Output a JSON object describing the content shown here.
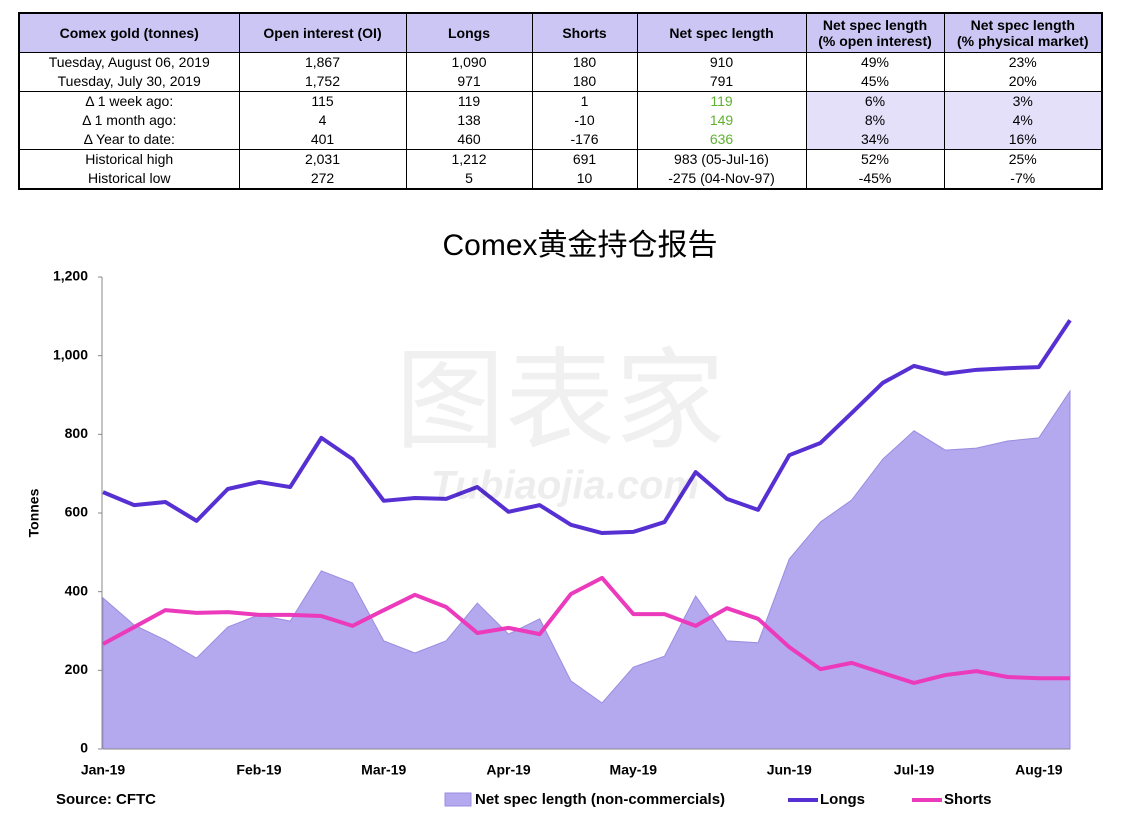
{
  "table": {
    "header": [
      "Comex gold (tonnes)",
      "Open interest (OI)",
      "Longs",
      "Shorts",
      "Net spec length",
      "Net spec length\n(% open interest)",
      "Net spec length\n(% physical market)"
    ],
    "rows": [
      [
        "Tuesday, August 06, 2019",
        "1,867",
        "1,090",
        "180",
        "910",
        "49%",
        "23%"
      ],
      [
        "Tuesday, July 30, 2019",
        "1,752",
        "971",
        "180",
        "791",
        "45%",
        "20%"
      ],
      [
        "Δ 1 week ago:",
        "115",
        "119",
        "1",
        "119",
        "6%",
        "3%"
      ],
      [
        "Δ 1 month ago:",
        "4",
        "138",
        "-10",
        "149",
        "8%",
        "4%"
      ],
      [
        "Δ Year to date:",
        "401",
        "460",
        "-176",
        "636",
        "34%",
        "16%"
      ],
      [
        "Historical high",
        "2,031",
        "1,212",
        "691",
        "983  (05-Jul-16)",
        "52%",
        "25%"
      ],
      [
        "Historical low",
        "272",
        "5",
        "10",
        "-275  (04-Nov-97)",
        "-45%",
        "-7%"
      ]
    ]
  },
  "watermark": [
    "图表家",
    "Tubiaojia.com"
  ],
  "chart_data": {
    "type": "line",
    "title": "Comex黄金持仓报告",
    "y_label": "Tonnes",
    "source": "Source: CFTC",
    "categories": [
      "Jan-19",
      null,
      null,
      null,
      null,
      "Feb-19",
      null,
      null,
      null,
      "Mar-19",
      null,
      null,
      null,
      "Apr-19",
      null,
      null,
      null,
      "May-19",
      null,
      null,
      null,
      null,
      "Jun-19",
      null,
      null,
      null,
      "Jul-19",
      null,
      null,
      null,
      "Aug-19",
      null
    ],
    "ylim": [
      0,
      1200
    ],
    "yticks": [
      0,
      200,
      400,
      600,
      800,
      {
        "value": 1000,
        "label": "1,000"
      },
      {
        "value": 1200,
        "label": "1,200"
      }
    ],
    "series": [
      {
        "name": "Net spec length (non-commercials)",
        "style": "area",
        "color": "#b4a8ee",
        "values": [
          384,
          315,
          277,
          231,
          310,
          341,
          325,
          453,
          422,
          275,
          244,
          275,
          371,
          292,
          331,
          173,
          117,
          208,
          236,
          389,
          275,
          270,
          483,
          577,
          633,
          737,
          809,
          760,
          765,
          783,
          791,
          910
        ]
      },
      {
        "name": "Longs",
        "style": "line",
        "color": "#5630d2",
        "values": [
          653,
          620,
          628,
          580,
          661,
          679,
          666,
          791,
          737,
          631,
          638,
          636,
          666,
          603,
          620,
          570,
          549,
          552,
          577,
          704,
          636,
          608,
          747,
          778,
          854,
          931,
          974,
          954,
          964,
          968,
          971,
          1090
        ]
      },
      {
        "name": "Shorts",
        "style": "line",
        "color": "#ec3abd",
        "values": [
          267,
          310,
          353,
          346,
          348,
          341,
          341,
          338,
          313,
          353,
          392,
          361,
          295,
          308,
          292,
          394,
          435,
          343,
          343,
          313,
          358,
          331,
          259,
          203,
          219,
          193,
          168,
          188,
          198,
          183,
          180,
          180
        ]
      }
    ]
  }
}
